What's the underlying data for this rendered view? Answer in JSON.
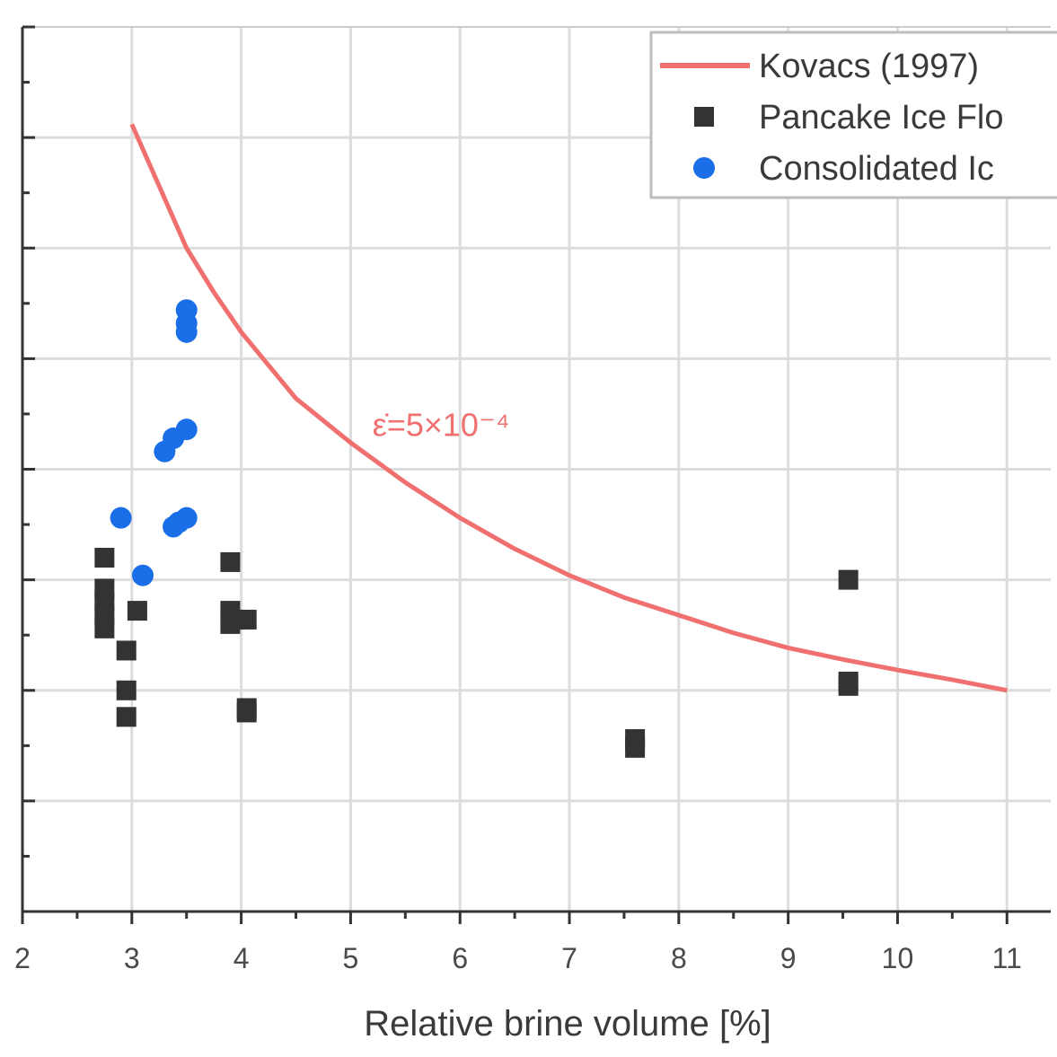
{
  "chart_data": {
    "type": "scatter",
    "title": "",
    "xlabel": "Relative brine volume [%]",
    "ylabel": "",
    "xlim": [
      2,
      11.4
    ],
    "ylim": [
      0,
      1
    ],
    "x_ticks": [
      "2",
      "3",
      "4",
      "5",
      "6",
      "7",
      "8",
      "9",
      "10",
      "11"
    ],
    "grid": true,
    "legend_position": "top-right",
    "annotation": {
      "text": "ε̇=5×10⁻⁴",
      "x": 5.2,
      "y": 0.55
    },
    "series": [
      {
        "name": "Kovacs (1997)",
        "type": "line",
        "color": "#f07070",
        "x": [
          3.0,
          3.25,
          3.5,
          3.75,
          4.0,
          4.5,
          5.0,
          5.5,
          6.0,
          6.5,
          7.0,
          7.5,
          8.0,
          8.5,
          9.0,
          9.5,
          10.0,
          10.5,
          11.0
        ],
        "y": [
          0.89,
          0.82,
          0.75,
          0.7,
          0.655,
          0.58,
          0.53,
          0.485,
          0.445,
          0.41,
          0.38,
          0.355,
          0.335,
          0.315,
          0.298,
          0.285,
          0.273,
          0.262,
          0.25
        ]
      },
      {
        "name": "Pancake Ice Flo",
        "type": "scatter",
        "marker": "square",
        "color": "#333333",
        "x": [
          2.75,
          2.75,
          2.75,
          2.75,
          2.75,
          2.95,
          2.95,
          2.95,
          3.05,
          3.9,
          3.9,
          3.9,
          3.95,
          4.05,
          4.05,
          4.05,
          7.6,
          7.6,
          9.55,
          9.55,
          9.55
        ],
        "y": [
          0.4,
          0.365,
          0.35,
          0.335,
          0.32,
          0.295,
          0.25,
          0.22,
          0.34,
          0.395,
          0.34,
          0.325,
          0.33,
          0.33,
          0.23,
          0.225,
          0.195,
          0.185,
          0.375,
          0.26,
          0.255
        ]
      },
      {
        "name": "Consolidated Ic",
        "type": "scatter",
        "marker": "circle",
        "color": "#1a6ee8",
        "x": [
          3.5,
          3.5,
          3.5,
          3.5,
          3.3,
          3.38,
          2.9,
          3.38,
          3.43,
          3.5,
          3.1
        ],
        "y": [
          0.68,
          0.665,
          0.655,
          0.545,
          0.52,
          0.535,
          0.445,
          0.435,
          0.44,
          0.445,
          0.38
        ]
      }
    ]
  }
}
